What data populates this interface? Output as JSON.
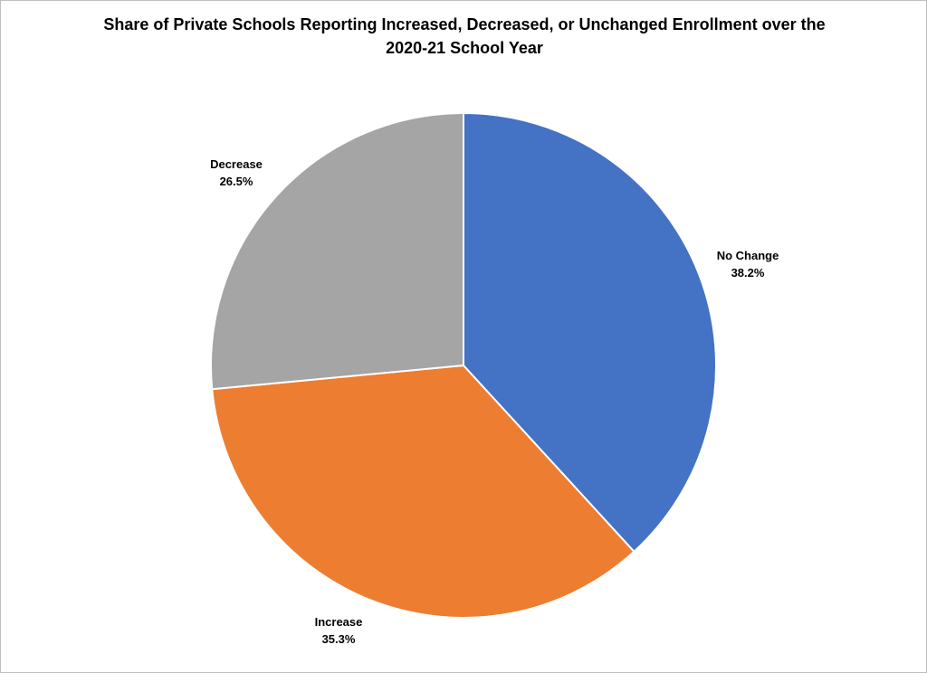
{
  "chart_data": {
    "type": "pie",
    "title_lines": [
      "Share of Private Schools Reporting Increased, Decreased, or Unchanged Enrollment over the",
      "2020-21 School Year"
    ],
    "slices": [
      {
        "name": "No Change",
        "value": 38.2,
        "label": "38.2%",
        "color": "#4472C4"
      },
      {
        "name": "Increase",
        "value": 35.3,
        "label": "35.3%",
        "color": "#ED7D31"
      },
      {
        "name": "Decrease",
        "value": 26.5,
        "label": "26.5%",
        "color": "#A5A5A5"
      }
    ],
    "start": "12 o'clock",
    "direction": "clockwise",
    "legend": "none"
  }
}
